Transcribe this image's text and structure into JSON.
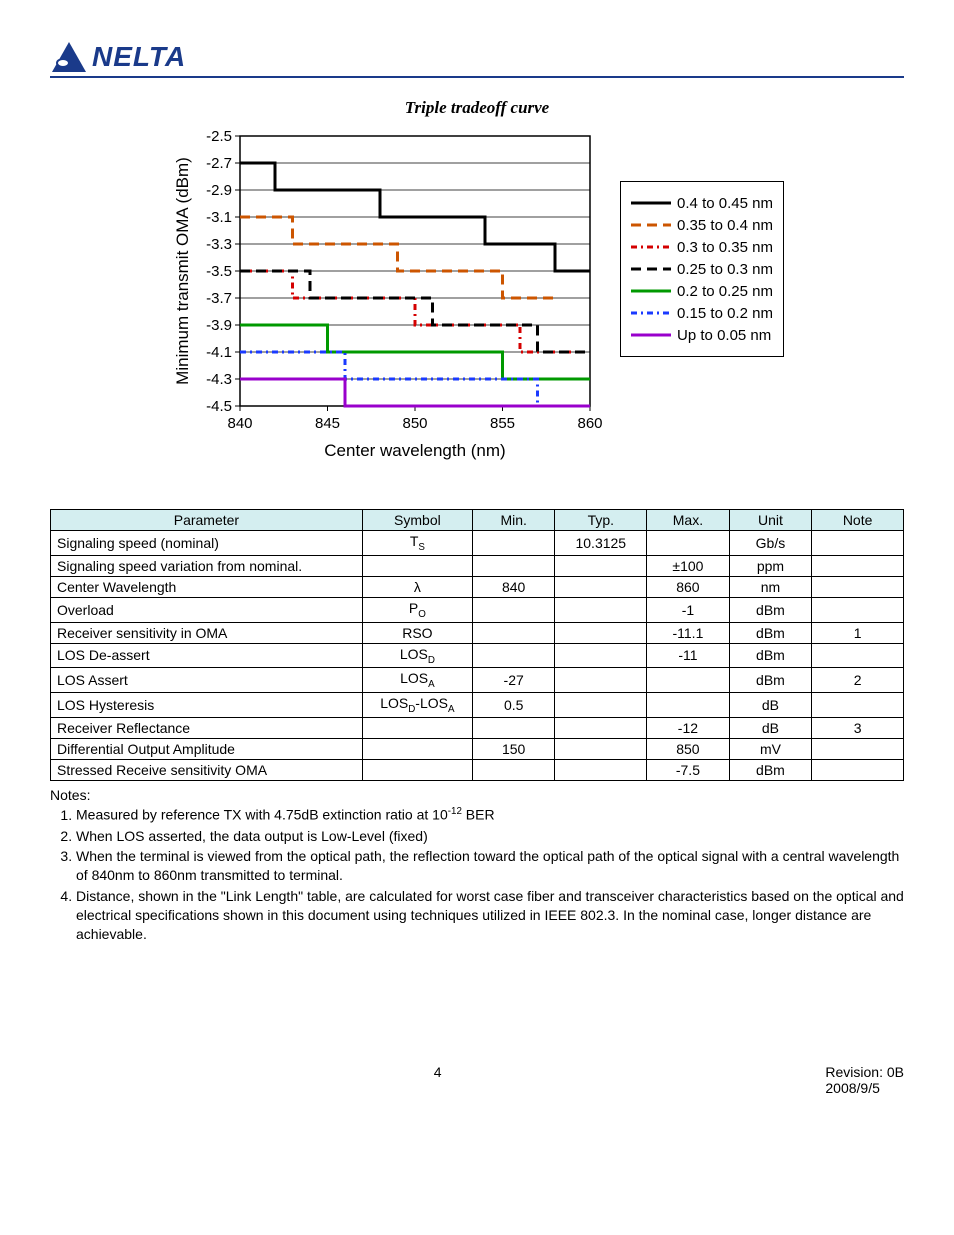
{
  "chart": {
    "title": "Triple tradeoff curve",
    "xlabel": "Center wavelength (nm)",
    "ylabel": "Minimum transmit OMA (dBm)",
    "x_ticks": [
      840,
      845,
      850,
      855,
      860
    ],
    "y_ticks": [
      -2.5,
      -2.7,
      -2.9,
      -3.1,
      -3.3,
      -3.5,
      -3.7,
      -3.9,
      -4.1,
      -4.3,
      -4.5
    ],
    "xlim": [
      840,
      860
    ],
    "ylim": [
      -4.5,
      -2.5
    ],
    "grid_color": "#000000",
    "background_color": "#ffffff",
    "axis_fontsize": 17,
    "tick_fontsize": 15,
    "series": [
      {
        "label": "0.4 to 0.45 nm",
        "color": "#000000",
        "dash": "",
        "width": 3,
        "steps": [
          [
            840,
            -2.7
          ],
          [
            842,
            -2.7
          ],
          [
            842,
            -2.9
          ],
          [
            848,
            -2.9
          ],
          [
            848,
            -3.1
          ],
          [
            854,
            -3.1
          ],
          [
            854,
            -3.3
          ],
          [
            858,
            -3.3
          ],
          [
            858,
            -3.5
          ],
          [
            860,
            -3.5
          ]
        ]
      },
      {
        "label": "0.35 to 0.4 nm",
        "color": "#cc5500",
        "dash": "10,6",
        "width": 3,
        "steps": [
          [
            840,
            -3.1
          ],
          [
            843,
            -3.1
          ],
          [
            843,
            -3.3
          ],
          [
            849,
            -3.3
          ],
          [
            849,
            -3.5
          ],
          [
            855,
            -3.5
          ],
          [
            855,
            -3.7
          ],
          [
            858,
            -3.7
          ]
        ]
      },
      {
        "label": "0.3 to 0.35 nm",
        "color": "#d40000",
        "dash": "6,4,2,4",
        "width": 3,
        "steps": [
          [
            840,
            -3.5
          ],
          [
            843,
            -3.5
          ],
          [
            843,
            -3.7
          ],
          [
            850,
            -3.7
          ],
          [
            850,
            -3.9
          ],
          [
            856,
            -3.9
          ],
          [
            856,
            -4.1
          ],
          [
            859,
            -4.1
          ]
        ]
      },
      {
        "label": "0.25 to 0.3 nm",
        "color": "#000000",
        "dash": "10,6",
        "width": 3,
        "steps": [
          [
            840,
            -3.5
          ],
          [
            844,
            -3.5
          ],
          [
            844,
            -3.7
          ],
          [
            851,
            -3.7
          ],
          [
            851,
            -3.9
          ],
          [
            857,
            -3.9
          ],
          [
            857,
            -4.1
          ],
          [
            860,
            -4.1
          ]
        ]
      },
      {
        "label": "0.2 to 0.25 nm",
        "color": "#009900",
        "dash": "",
        "width": 3,
        "steps": [
          [
            840,
            -3.9
          ],
          [
            845,
            -3.9
          ],
          [
            845,
            -4.1
          ],
          [
            855,
            -4.1
          ],
          [
            855,
            -4.3
          ],
          [
            860,
            -4.3
          ]
        ]
      },
      {
        "label": "0.15 to 0.2 nm",
        "color": "#1a3aff",
        "dash": "6,4,2,4",
        "width": 3,
        "steps": [
          [
            840,
            -4.1
          ],
          [
            846,
            -4.1
          ],
          [
            846,
            -4.3
          ],
          [
            857,
            -4.3
          ],
          [
            857,
            -4.5
          ],
          [
            859,
            -4.5
          ]
        ]
      },
      {
        "label": "Up to 0.05 nm",
        "color": "#9900cc",
        "dash": "",
        "width": 3,
        "steps": [
          [
            840,
            -4.3
          ],
          [
            846,
            -4.3
          ],
          [
            846,
            -4.5
          ],
          [
            860,
            -4.5
          ]
        ]
      }
    ]
  },
  "table": {
    "headers": [
      "Parameter",
      "Symbol",
      "Min.",
      "Typ.",
      "Max.",
      "Unit",
      "Note"
    ],
    "rows": [
      {
        "param": "Signaling speed (nominal)",
        "symbol": "T<sub class='sub'>S</sub>",
        "min": "",
        "typ": "10.3125",
        "max": "",
        "unit": "Gb/s",
        "note": ""
      },
      {
        "param": "Signaling speed variation from nominal.",
        "symbol": "",
        "min": "",
        "typ": "",
        "max": "±100",
        "unit": "ppm",
        "note": ""
      },
      {
        "param": "Center Wavelength",
        "symbol": "λ",
        "min": "840",
        "typ": "",
        "max": "860",
        "unit": "nm",
        "note": ""
      },
      {
        "param": "Overload",
        "symbol": "P<sub class='sub'>O</sub>",
        "min": "",
        "typ": "",
        "max": "-1",
        "unit": "dBm",
        "note": ""
      },
      {
        "param": "Receiver sensitivity in OMA",
        "symbol": "RSO",
        "min": "",
        "typ": "",
        "max": "-11.1",
        "unit": "dBm",
        "note": "1"
      },
      {
        "param": "LOS De-assert",
        "symbol": "LOS<sub class='sub'>D</sub>",
        "min": "",
        "typ": "",
        "max": "-11",
        "unit": "dBm",
        "note": ""
      },
      {
        "param": "LOS Assert",
        "symbol": "LOS<sub class='sub'>A</sub>",
        "min": "-27",
        "typ": "",
        "max": "",
        "unit": "dBm",
        "note": "2"
      },
      {
        "param": "LOS Hysteresis",
        "symbol": "LOS<sub class='sub'>D</sub>-LOS<sub class='sub'>A</sub>",
        "min": "0.5",
        "typ": "",
        "max": "",
        "unit": "dB",
        "note": ""
      },
      {
        "param": "Receiver Reflectance",
        "symbol": "",
        "min": "",
        "typ": "",
        "max": "-12",
        "unit": "dB",
        "note": "3"
      },
      {
        "param": "Differential Output Amplitude",
        "symbol": "",
        "min": "150",
        "typ": "",
        "max": "850",
        "unit": "mV",
        "note": ""
      },
      {
        "param": "Stressed Receive sensitivity OMA",
        "symbol": "",
        "min": "",
        "typ": "",
        "max": "-7.5",
        "unit": "dBm",
        "note": ""
      }
    ]
  },
  "notes": {
    "title": "Notes:",
    "items": [
      "Measured by reference TX with 4.75dB extinction ratio at 10<sup class='sup'>-12</sup> BER",
      "When LOS asserted, the data output is Low-Level (fixed)",
      "When the terminal is viewed from the optical path, the reflection toward the optical path of the optical signal with a central wavelength of 840nm to 860nm transmitted to terminal.",
      "Distance, shown in the \"Link Length\" table, are calculated for worst case fiber and transceiver characteristics based on the optical and electrical specifications shown in this document using techniques utilized in IEEE 802.3. In the nominal case, longer distance are achievable."
    ]
  },
  "footer": {
    "page": "4",
    "revision": "Revision:  0B",
    "date": "2008/9/5"
  },
  "logo_text": "NELTA"
}
